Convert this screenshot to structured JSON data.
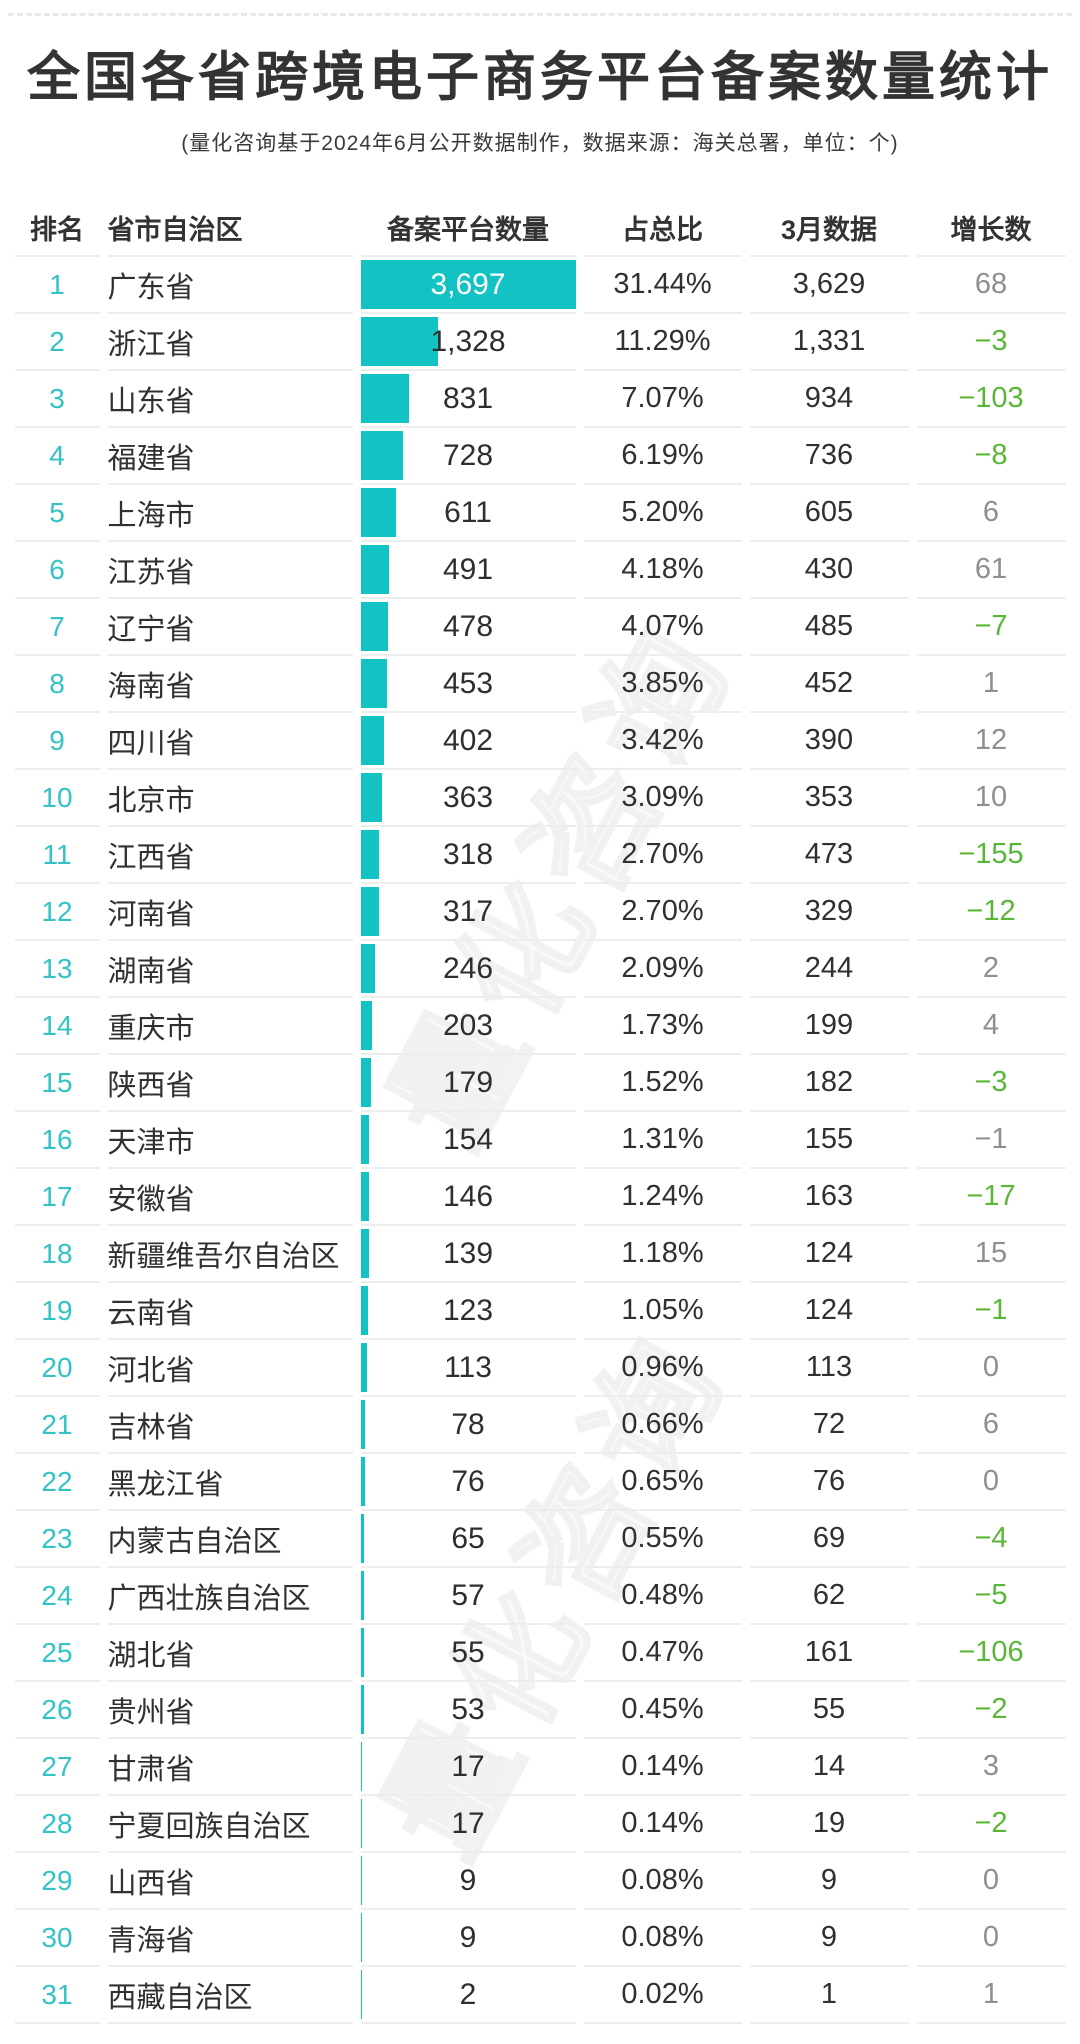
{
  "page": {
    "title": "全国各省跨境电子商务平台备案数量统计",
    "subtitle": "(量化咨询基于2024年6月公开数据制作，数据来源：海关总署，单位：个)"
  },
  "watermark": {
    "text": "量化咨询"
  },
  "colors": {
    "bar_teal": "#13c2c2",
    "rank_teal": "#33c3c4",
    "growth_green": "#5ab637",
    "growth_gray": "#8f8f8f",
    "text_dark": "#303030",
    "row_border": "#ededed"
  },
  "chart_data": {
    "type": "bar",
    "title": "全国各省跨境电子商务平台备案数量统计",
    "subtitle": "(量化咨询基于2024年6月公开数据制作，数据来源：海关总署，单位：个)",
    "columns": [
      "排名",
      "省市自治区",
      "备案平台数量",
      "占总比",
      "3月数据",
      "增长数"
    ],
    "bar_max_value": 3697,
    "bar_color": "#13c2c2",
    "rows": [
      {
        "rank": "1",
        "province": "广东省",
        "count": 3697,
        "count_label": "3,697",
        "pct": "31.44%",
        "march": "3,629",
        "growth": "68",
        "growth_color": "gray"
      },
      {
        "rank": "2",
        "province": "浙江省",
        "count": 1328,
        "count_label": "1,328",
        "pct": "11.29%",
        "march": "1,331",
        "growth": "−3",
        "growth_color": "green"
      },
      {
        "rank": "3",
        "province": "山东省",
        "count": 831,
        "count_label": "831",
        "pct": "7.07%",
        "march": "934",
        "growth": "−103",
        "growth_color": "green"
      },
      {
        "rank": "4",
        "province": "福建省",
        "count": 728,
        "count_label": "728",
        "pct": "6.19%",
        "march": "736",
        "growth": "−8",
        "growth_color": "green"
      },
      {
        "rank": "5",
        "province": "上海市",
        "count": 611,
        "count_label": "611",
        "pct": "5.20%",
        "march": "605",
        "growth": "6",
        "growth_color": "gray"
      },
      {
        "rank": "6",
        "province": "江苏省",
        "count": 491,
        "count_label": "491",
        "pct": "4.18%",
        "march": "430",
        "growth": "61",
        "growth_color": "gray"
      },
      {
        "rank": "7",
        "province": "辽宁省",
        "count": 478,
        "count_label": "478",
        "pct": "4.07%",
        "march": "485",
        "growth": "−7",
        "growth_color": "green"
      },
      {
        "rank": "8",
        "province": "海南省",
        "count": 453,
        "count_label": "453",
        "pct": "3.85%",
        "march": "452",
        "growth": "1",
        "growth_color": "gray"
      },
      {
        "rank": "9",
        "province": "四川省",
        "count": 402,
        "count_label": "402",
        "pct": "3.42%",
        "march": "390",
        "growth": "12",
        "growth_color": "gray"
      },
      {
        "rank": "10",
        "province": "北京市",
        "count": 363,
        "count_label": "363",
        "pct": "3.09%",
        "march": "353",
        "growth": "10",
        "growth_color": "gray"
      },
      {
        "rank": "11",
        "province": "江西省",
        "count": 318,
        "count_label": "318",
        "pct": "2.70%",
        "march": "473",
        "growth": "−155",
        "growth_color": "green"
      },
      {
        "rank": "12",
        "province": "河南省",
        "count": 317,
        "count_label": "317",
        "pct": "2.70%",
        "march": "329",
        "growth": "−12",
        "growth_color": "green"
      },
      {
        "rank": "13",
        "province": "湖南省",
        "count": 246,
        "count_label": "246",
        "pct": "2.09%",
        "march": "244",
        "growth": "2",
        "growth_color": "gray"
      },
      {
        "rank": "14",
        "province": "重庆市",
        "count": 203,
        "count_label": "203",
        "pct": "1.73%",
        "march": "199",
        "growth": "4",
        "growth_color": "gray"
      },
      {
        "rank": "15",
        "province": "陕西省",
        "count": 179,
        "count_label": "179",
        "pct": "1.52%",
        "march": "182",
        "growth": "−3",
        "growth_color": "green"
      },
      {
        "rank": "16",
        "province": "天津市",
        "count": 154,
        "count_label": "154",
        "pct": "1.31%",
        "march": "155",
        "growth": "−1",
        "growth_color": "gray"
      },
      {
        "rank": "17",
        "province": "安徽省",
        "count": 146,
        "count_label": "146",
        "pct": "1.24%",
        "march": "163",
        "growth": "−17",
        "growth_color": "green"
      },
      {
        "rank": "18",
        "province": "新疆维吾尔自治区",
        "count": 139,
        "count_label": "139",
        "pct": "1.18%",
        "march": "124",
        "growth": "15",
        "growth_color": "gray"
      },
      {
        "rank": "19",
        "province": "云南省",
        "count": 123,
        "count_label": "123",
        "pct": "1.05%",
        "march": "124",
        "growth": "−1",
        "growth_color": "green"
      },
      {
        "rank": "20",
        "province": "河北省",
        "count": 113,
        "count_label": "113",
        "pct": "0.96%",
        "march": "113",
        "growth": "0",
        "growth_color": "gray"
      },
      {
        "rank": "21",
        "province": "吉林省",
        "count": 78,
        "count_label": "78",
        "pct": "0.66%",
        "march": "72",
        "growth": "6",
        "growth_color": "gray"
      },
      {
        "rank": "22",
        "province": "黑龙江省",
        "count": 76,
        "count_label": "76",
        "pct": "0.65%",
        "march": "76",
        "growth": "0",
        "growth_color": "gray"
      },
      {
        "rank": "23",
        "province": "内蒙古自治区",
        "count": 65,
        "count_label": "65",
        "pct": "0.55%",
        "march": "69",
        "growth": "−4",
        "growth_color": "green"
      },
      {
        "rank": "24",
        "province": "广西壮族自治区",
        "count": 57,
        "count_label": "57",
        "pct": "0.48%",
        "march": "62",
        "growth": "−5",
        "growth_color": "green"
      },
      {
        "rank": "25",
        "province": "湖北省",
        "count": 55,
        "count_label": "55",
        "pct": "0.47%",
        "march": "161",
        "growth": "−106",
        "growth_color": "green"
      },
      {
        "rank": "26",
        "province": "贵州省",
        "count": 53,
        "count_label": "53",
        "pct": "0.45%",
        "march": "55",
        "growth": "−2",
        "growth_color": "green"
      },
      {
        "rank": "27",
        "province": "甘肃省",
        "count": 17,
        "count_label": "17",
        "pct": "0.14%",
        "march": "14",
        "growth": "3",
        "growth_color": "gray"
      },
      {
        "rank": "28",
        "province": "宁夏回族自治区",
        "count": 17,
        "count_label": "17",
        "pct": "0.14%",
        "march": "19",
        "growth": "−2",
        "growth_color": "green"
      },
      {
        "rank": "29",
        "province": "山西省",
        "count": 9,
        "count_label": "9",
        "pct": "0.08%",
        "march": "9",
        "growth": "0",
        "growth_color": "gray"
      },
      {
        "rank": "30",
        "province": "青海省",
        "count": 9,
        "count_label": "9",
        "pct": "0.08%",
        "march": "9",
        "growth": "0",
        "growth_color": "gray"
      },
      {
        "rank": "31",
        "province": "西藏自治区",
        "count": 2,
        "count_label": "2",
        "pct": "0.02%",
        "march": "1",
        "growth": "1",
        "growth_color": "gray"
      }
    ]
  }
}
